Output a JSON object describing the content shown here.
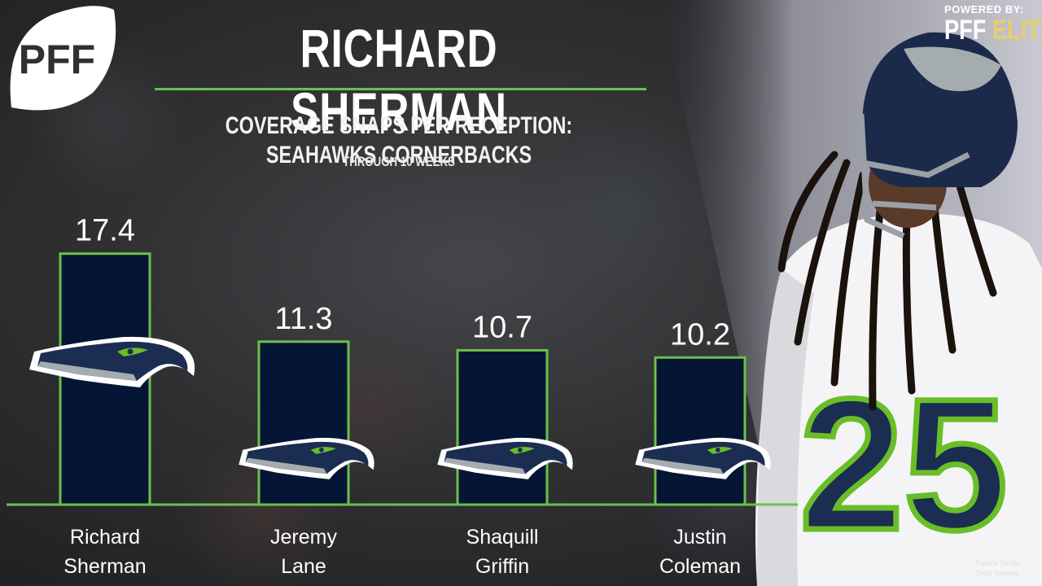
{
  "logo": {
    "text": "PFF"
  },
  "title": "RICHARD SHERMAN",
  "subtitle": "COVERAGE SNAPS PER RECEPTION: SEAHAWKS CORNERBACKS",
  "note": "THROUGH 10 WEEKS",
  "powered": {
    "line1": "POWERED BY:",
    "brand": "PFF",
    "tier": "ELITE"
  },
  "credit": {
    "line1": "Patrick Smith/",
    "line2": "Getty Images"
  },
  "player_jersey": "25",
  "colors": {
    "accent": "#6cc04a",
    "bar_fill": "#041535",
    "background": "#2f3032",
    "elite_gold": "#e6cf6a"
  },
  "icons": {
    "team_logo": "seahawks-logo-icon"
  },
  "chart_data": {
    "type": "bar",
    "categories": [
      [
        "Richard",
        "Sherman"
      ],
      [
        "Jeremy",
        "Lane"
      ],
      [
        "Shaquill",
        "Griffin"
      ],
      [
        "Justin",
        "Coleman"
      ]
    ],
    "values": [
      17.4,
      11.3,
      10.7,
      10.2
    ],
    "value_labels": [
      "17.4",
      "11.3",
      "10.7",
      "10.2"
    ],
    "title": "COVERAGE SNAPS PER RECEPTION: SEAHAWKS CORNERBACKS",
    "xlabel": "",
    "ylabel": "",
    "ylim": [
      0,
      20.6
    ],
    "grid": false,
    "legend": "none"
  }
}
